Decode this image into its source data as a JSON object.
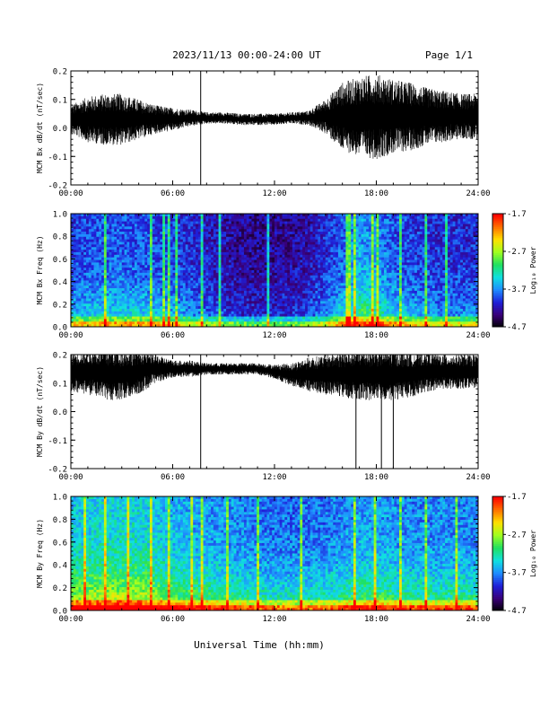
{
  "header": {
    "title": "2023/11/13  00:00-24:00 UT",
    "page": "Page 1/1"
  },
  "footer": {
    "xlabel": "Universal Time (hh:mm)"
  },
  "colors": {
    "trace": "#000000",
    "colormap": [
      "#000000",
      "#3a0078",
      "#1f1fd8",
      "#1f8cff",
      "#10e0e0",
      "#20e060",
      "#a0ff20",
      "#ffe000",
      "#ff7000",
      "#ff0000"
    ]
  },
  "chart_data": [
    {
      "id": "bx-trace",
      "type": "line",
      "title": "",
      "xlabel": "",
      "ylabel": "MCM Bx dB/dt (nT/sec)",
      "xlim": [
        "00:00",
        "24:00"
      ],
      "xticks": [
        "00:00",
        "06:00",
        "12:00",
        "18:00",
        "24:00"
      ],
      "ylim": [
        -0.2,
        0.2
      ],
      "yticks": [
        "0.2",
        "0.1",
        "0.0",
        "-0.1",
        "-0.2"
      ],
      "series": [
        {
          "x_hours": [
            0,
            1,
            2,
            3,
            4,
            5,
            6,
            7,
            8,
            9,
            10,
            11,
            12,
            13,
            14,
            15,
            16,
            17,
            18,
            19,
            20,
            21,
            22,
            23,
            24
          ],
          "center": [
            0.03,
            0.03,
            0.03,
            0.03,
            0.03,
            0.03,
            0.03,
            0.035,
            0.035,
            0.035,
            0.03,
            0.03,
            0.03,
            0.035,
            0.035,
            0.04,
            0.04,
            0.04,
            0.04,
            0.04,
            0.04,
            0.04,
            0.04,
            0.04,
            0.04
          ],
          "amplitude": [
            0.05,
            0.08,
            0.09,
            0.09,
            0.07,
            0.05,
            0.04,
            0.03,
            0.02,
            0.02,
            0.02,
            0.02,
            0.02,
            0.02,
            0.025,
            0.06,
            0.12,
            0.14,
            0.15,
            0.13,
            0.12,
            0.1,
            0.09,
            0.08,
            0.08
          ]
        }
      ],
      "spikes": [
        {
          "time_hours": 7.65,
          "min": -0.2,
          "max": 0.2
        }
      ]
    },
    {
      "id": "bx-spectrogram",
      "type": "heatmap",
      "title": "",
      "xlabel": "",
      "ylabel": "MCM Bx Freq (Hz)",
      "xlim": [
        "00:00",
        "24:00"
      ],
      "xticks": [
        "00:00",
        "06:00",
        "12:00",
        "18:00",
        "24:00"
      ],
      "ylim": [
        0.0,
        1.0
      ],
      "yticks": [
        "1.0",
        "0.8",
        "0.6",
        "0.4",
        "0.2",
        "0.0"
      ],
      "colorbar": {
        "label": "Log₁₀ Power",
        "range": [
          -4.7,
          -1.7
        ],
        "ticks": [
          "-1.7",
          "-2.7",
          "-3.7",
          "-4.7"
        ]
      },
      "activity_hours": [
        0,
        2,
        4,
        6,
        8,
        10,
        12,
        14,
        16,
        17,
        18,
        19,
        20,
        22,
        24
      ],
      "activity_level": [
        0.45,
        0.5,
        0.5,
        0.45,
        0.35,
        0.25,
        0.25,
        0.3,
        0.5,
        0.65,
        0.6,
        0.5,
        0.45,
        0.4,
        0.4
      ],
      "bright_lines_hours": [
        1.9,
        4.7,
        5.45,
        5.75,
        6.15,
        7.65,
        8.75,
        11.6,
        16.2,
        16.35,
        16.7,
        17.75,
        18.05,
        19.3,
        20.9,
        22.0
      ]
    },
    {
      "id": "by-trace",
      "type": "line",
      "title": "",
      "xlabel": "",
      "ylabel": "MCM By dB/dt (nT/sec)",
      "xlim": [
        "00:00",
        "24:00"
      ],
      "xticks": [
        "00:00",
        "06:00",
        "12:00",
        "18:00",
        "24:00"
      ],
      "ylim": [
        -0.2,
        0.2
      ],
      "yticks": [
        "0.2",
        "0.1",
        "0.0",
        "-0.1",
        "-0.2"
      ],
      "series": [
        {
          "x_hours": [
            0,
            1,
            2,
            3,
            4,
            5,
            6,
            7,
            8,
            9,
            10,
            11,
            12,
            13,
            14,
            15,
            16,
            17,
            18,
            19,
            20,
            21,
            22,
            23,
            24
          ],
          "center": [
            0.14,
            0.14,
            0.13,
            0.13,
            0.14,
            0.15,
            0.15,
            0.15,
            0.15,
            0.15,
            0.15,
            0.15,
            0.14,
            0.13,
            0.13,
            0.13,
            0.13,
            0.13,
            0.13,
            0.13,
            0.13,
            0.14,
            0.14,
            0.14,
            0.14
          ],
          "amplitude": [
            0.07,
            0.08,
            0.09,
            0.09,
            0.08,
            0.05,
            0.03,
            0.03,
            0.02,
            0.02,
            0.02,
            0.02,
            0.025,
            0.04,
            0.06,
            0.07,
            0.08,
            0.09,
            0.09,
            0.09,
            0.08,
            0.07,
            0.06,
            0.06,
            0.06
          ]
        }
      ],
      "spikes": [
        {
          "time_hours": 7.65,
          "min": -0.2,
          "max": 0.2
        },
        {
          "time_hours": 16.8,
          "min": -0.2,
          "max": 0.15
        },
        {
          "time_hours": 18.3,
          "min": -0.2,
          "max": 0.15
        },
        {
          "time_hours": 19.0,
          "min": -0.2,
          "max": 0.15
        }
      ]
    },
    {
      "id": "by-spectrogram",
      "type": "heatmap",
      "title": "",
      "xlabel": "",
      "ylabel": "MCM By Freq (Hz)",
      "xlim": [
        "00:00",
        "24:00"
      ],
      "xticks": [
        "00:00",
        "06:00",
        "12:00",
        "18:00",
        "24:00"
      ],
      "ylim": [
        0.0,
        1.0
      ],
      "yticks": [
        "1.0",
        "0.8",
        "0.6",
        "0.4",
        "0.2",
        "0.0"
      ],
      "colorbar": {
        "label": "Log₁₀ Power",
        "range": [
          -4.7,
          -1.7
        ],
        "ticks": [
          "-1.7",
          "-2.7",
          "-3.7",
          "-4.7"
        ]
      },
      "activity_hours": [
        0,
        2,
        4,
        6,
        8,
        10,
        12,
        14,
        16,
        17,
        18,
        20,
        22,
        24
      ],
      "activity_level": [
        0.75,
        0.8,
        0.8,
        0.7,
        0.65,
        0.6,
        0.55,
        0.55,
        0.6,
        0.65,
        0.65,
        0.6,
        0.6,
        0.6
      ],
      "bright_lines_hours": [
        0.8,
        1.9,
        3.3,
        4.7,
        5.7,
        7.1,
        7.65,
        9.2,
        11.0,
        13.5,
        16.7,
        17.9,
        19.4,
        20.9,
        22.6
      ]
    }
  ]
}
